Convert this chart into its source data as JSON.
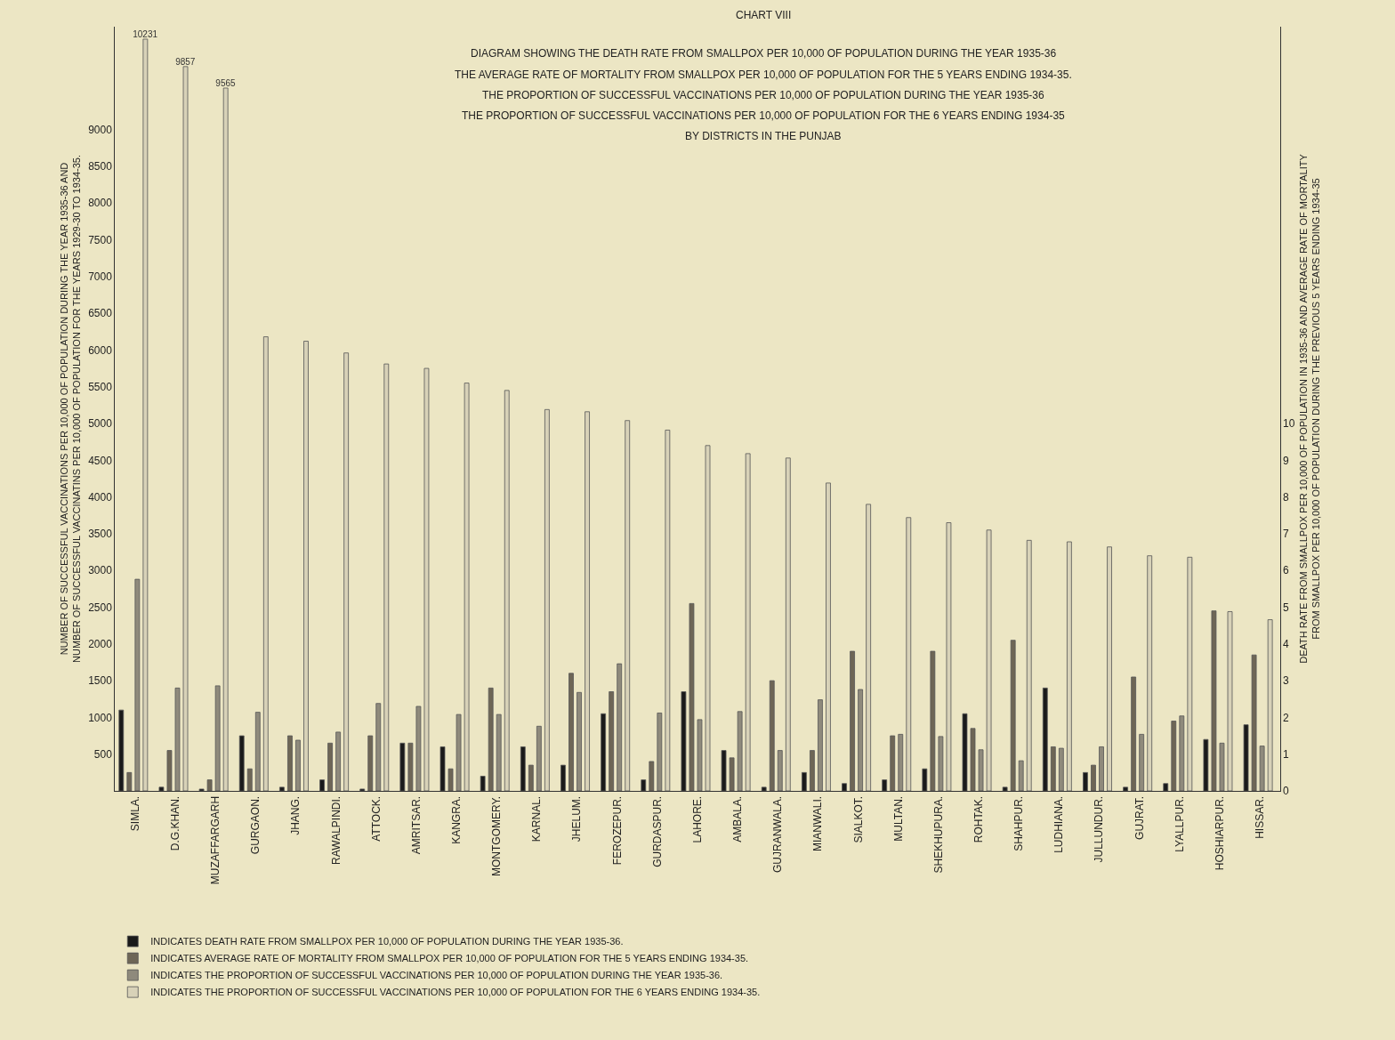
{
  "chart_data": {
    "type": "bar",
    "title": "DIAGRAM SHOWING THE DEATH RATE FROM SMALLPOX PER 10,000 OF POPULATION DURING THE YEAR 1935-36",
    "subtitle": "THE AVERAGE RATE OF MORTALITY FROM SMALLPOX PER 10,000 OF POPULATION FOR THE 5 YEARS ENDING 1934-35.\nTHE PROPORTION OF SUCCESSFUL VACCINATIONS PER 10,000 OF POPULATION DURING THE YEAR 1935-36\nTHE PROPORTION OF SUCCESSFUL VACCINATIONS PER 10,000 OF POPULATION FOR THE 6 YEARS ENDING 1934-35\nBY DISTRICTS IN THE PUNJAB",
    "annotations": [
      "CHART VIII"
    ],
    "ylabel": "NUMBER OF SUCCESSFUL VACCINATIONS PER 10,000 OF POPULATION DURING THE YEAR 1935-36 AND\nNUMBER OF SUCCESSFUL VACCINATINS PER 10,000 OF POPULATION FOR THE YEARS 1929-30 TO 1934-35.",
    "y2label": "DEATH RATE FROM SMALLPOX PER 10,000 OF POPULATION IN 1935-36 AND AVERAGE RATE OF MORTALITY\nFROM SMALLPOX PER 10,000 OF POPULATION DURING THE PREVIOUS 5 YEARS ENDING 1934-35",
    "categories": [
      "SIMLA.",
      "D.G.KHAN.",
      "MUZAFFARGARH",
      "GURGAON.",
      "JHANG.",
      "RAWALPINDI.",
      "ATTOCK.",
      "AMRITSAR.",
      "KANGRA.",
      "MONTGOMERY.",
      "KARNAL.",
      "JHELUM.",
      "FEROZEPUR.",
      "GURDASPUR.",
      "LAHORE.",
      "AMBALA.",
      "GUJRANWALA.",
      "MIANWALI.",
      "SIALKOT.",
      "MULTAN.",
      "SHEKHUPURA.",
      "ROHTAK.",
      "SHAHPUR.",
      "LUDHIANA.",
      "JULLUNDUR.",
      "GUJRAT.",
      "LYALLPUR.",
      "HOSHIARPUR.",
      "HISSAR."
    ],
    "series": [
      {
        "name": "INDICATES DEATH RATE FROM SMALLPOX PER 10,000 OF POPULATION DURING THE YEAR 1935-36.",
        "color": "#1a1a1a",
        "axis": "y2",
        "values": [
          2.2,
          0.1,
          0.05,
          1.5,
          0.1,
          0.3,
          0.05,
          1.3,
          1.2,
          0.4,
          1.2,
          0.7,
          2.1,
          0.3,
          2.7,
          1.1,
          0.1,
          0.5,
          0.2,
          0.3,
          0.6,
          2.1,
          0.1,
          2.8,
          0.5,
          0.1,
          0.2,
          1.4,
          1.8
        ]
      },
      {
        "name": "INDICATES AVERAGE RATE OF MORTALITY FROM SMALLPOX PER 10,000 OF POPULATION FOR THE 5 YEARS ENDING 1934-35.",
        "color": "#6e6656",
        "axis": "y2",
        "values": [
          0.5,
          1.1,
          0.3,
          0.6,
          1.5,
          1.3,
          1.5,
          1.3,
          0.6,
          2.8,
          0.7,
          3.2,
          2.7,
          0.8,
          5.1,
          0.9,
          3.0,
          1.1,
          3.8,
          1.5,
          3.8,
          1.7,
          4.1,
          1.2,
          0.7,
          3.1,
          1.9,
          4.9,
          3.7
        ]
      },
      {
        "name": "INDICATES THE PROPORTION OF SUCCESSFUL VACCINATIONS PER 10,000 OF POPULATION DURING THE YEAR 1935-36.",
        "color": "#8f8a7c",
        "values": [
          2880,
          1400,
          1430,
          1070,
          690,
          800,
          1190,
          1150,
          1040,
          1040,
          880,
          1340,
          1730,
          1060,
          970,
          1080,
          550,
          1240,
          1380,
          770,
          740,
          560,
          410,
          580,
          600,
          770,
          1020,
          650,
          610
        ]
      },
      {
        "name": "INDICATES THE PROPORTION OF SUCCESSFUL VACCINATIONS PER 10,000 OF POPULATION FOR THE 6 YEARS ENDING 1934-35.",
        "color": "#d8d2b8",
        "values": [
          10231,
          9857,
          9565,
          6180,
          6120,
          5960,
          5810,
          5750,
          5550,
          5450,
          5190,
          5160,
          5040,
          4910,
          4700,
          4590,
          4530,
          4190,
          3900,
          3720,
          3650,
          3550,
          3410,
          3390,
          3320,
          3200,
          3180,
          2440,
          2330
        ],
        "value_labels": [
          "10231",
          "9857",
          "9565",
          null,
          null,
          null,
          null,
          null,
          null,
          null,
          null,
          null,
          null,
          null,
          null,
          null,
          null,
          null,
          null,
          null,
          null,
          null,
          null,
          null,
          null,
          null,
          null,
          null,
          null
        ]
      }
    ],
    "ylim": [
      0,
      10400
    ],
    "yticks": [
      500,
      1000,
      1500,
      2000,
      2500,
      3000,
      3500,
      4000,
      4500,
      5000,
      5500,
      6000,
      6500,
      7000,
      7500,
      8000,
      8500,
      9000
    ],
    "y2lim": [
      0,
      20.8
    ],
    "y2ticks": [
      0,
      1,
      2,
      3,
      4,
      5,
      6,
      7,
      8,
      9,
      10
    ],
    "legend": "bottom"
  }
}
